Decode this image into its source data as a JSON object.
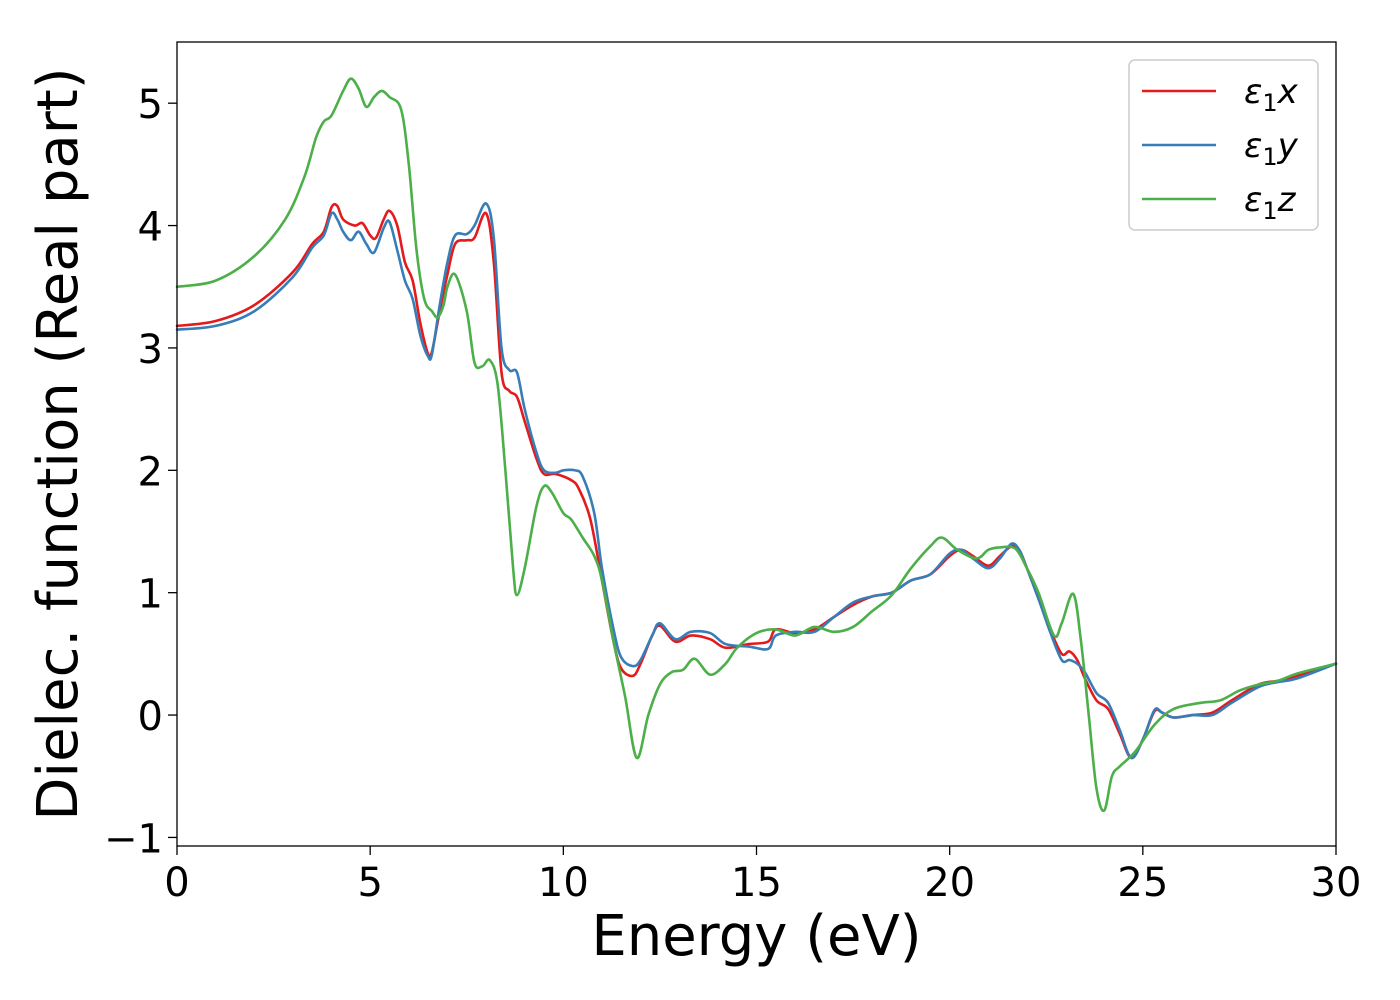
{
  "chart_data": {
    "type": "line",
    "title": "",
    "xlabel": "Energy (eV)",
    "ylabel": "Dielec. function (Real part)",
    "xlim": [
      0,
      30
    ],
    "ylim": [
      -1.07,
      5.5
    ],
    "xticks": [
      0,
      5,
      10,
      15,
      20,
      25,
      30
    ],
    "xtick_labels": [
      "0",
      "5",
      "10",
      "15",
      "20",
      "25",
      "30"
    ],
    "yticks": [
      -1,
      0,
      1,
      2,
      3,
      4,
      5
    ],
    "ytick_labels": [
      "−1",
      "0",
      "1",
      "2",
      "3",
      "4",
      "5"
    ],
    "grid": false,
    "legend_position": "top-right",
    "series": [
      {
        "name": "ε1x",
        "legend_base": "ε",
        "legend_sub": "1",
        "legend_var": "x",
        "color": "#e41a1c",
        "points": [
          [
            0,
            3.18
          ],
          [
            1,
            3.22
          ],
          [
            2,
            3.35
          ],
          [
            3,
            3.62
          ],
          [
            3.5,
            3.85
          ],
          [
            3.8,
            3.95
          ],
          [
            4.0,
            4.15
          ],
          [
            4.15,
            4.16
          ],
          [
            4.3,
            4.05
          ],
          [
            4.6,
            4.0
          ],
          [
            4.8,
            4.02
          ],
          [
            5.0,
            3.92
          ],
          [
            5.15,
            3.9
          ],
          [
            5.35,
            4.05
          ],
          [
            5.5,
            4.12
          ],
          [
            5.7,
            4.0
          ],
          [
            5.9,
            3.7
          ],
          [
            6.1,
            3.55
          ],
          [
            6.3,
            3.2
          ],
          [
            6.5,
            2.95
          ],
          [
            6.6,
            2.97
          ],
          [
            6.8,
            3.3
          ],
          [
            7.0,
            3.6
          ],
          [
            7.2,
            3.85
          ],
          [
            7.5,
            3.88
          ],
          [
            7.7,
            3.9
          ],
          [
            8.0,
            4.1
          ],
          [
            8.2,
            3.7
          ],
          [
            8.4,
            2.8
          ],
          [
            8.6,
            2.65
          ],
          [
            8.8,
            2.6
          ],
          [
            9.0,
            2.4
          ],
          [
            9.3,
            2.1
          ],
          [
            9.5,
            1.97
          ],
          [
            9.8,
            1.97
          ],
          [
            10.2,
            1.92
          ],
          [
            10.4,
            1.85
          ],
          [
            10.7,
            1.6
          ],
          [
            11.0,
            1.1
          ],
          [
            11.3,
            0.6
          ],
          [
            11.5,
            0.38
          ],
          [
            11.8,
            0.32
          ],
          [
            12.0,
            0.42
          ],
          [
            12.3,
            0.65
          ],
          [
            12.5,
            0.73
          ],
          [
            12.9,
            0.6
          ],
          [
            13.3,
            0.65
          ],
          [
            13.8,
            0.62
          ],
          [
            14.2,
            0.55
          ],
          [
            14.8,
            0.58
          ],
          [
            15.3,
            0.6
          ],
          [
            15.5,
            0.7
          ],
          [
            16.0,
            0.67
          ],
          [
            16.5,
            0.7
          ],
          [
            17.0,
            0.8
          ],
          [
            17.5,
            0.9
          ],
          [
            18.0,
            0.97
          ],
          [
            18.5,
            1.0
          ],
          [
            19.0,
            1.1
          ],
          [
            19.5,
            1.15
          ],
          [
            20.0,
            1.3
          ],
          [
            20.3,
            1.35
          ],
          [
            20.6,
            1.3
          ],
          [
            21.0,
            1.22
          ],
          [
            21.3,
            1.3
          ],
          [
            21.6,
            1.38
          ],
          [
            21.8,
            1.35
          ],
          [
            22.0,
            1.2
          ],
          [
            22.3,
            0.95
          ],
          [
            22.6,
            0.7
          ],
          [
            22.9,
            0.5
          ],
          [
            23.1,
            0.52
          ],
          [
            23.3,
            0.45
          ],
          [
            23.5,
            0.3
          ],
          [
            23.8,
            0.12
          ],
          [
            24.1,
            0.05
          ],
          [
            24.4,
            -0.15
          ],
          [
            24.7,
            -0.35
          ],
          [
            25.0,
            -0.2
          ],
          [
            25.3,
            0.03
          ],
          [
            25.5,
            0.02
          ],
          [
            25.8,
            -0.02
          ],
          [
            26.3,
            0.0
          ],
          [
            26.8,
            0.02
          ],
          [
            27.3,
            0.12
          ],
          [
            28.0,
            0.25
          ],
          [
            28.5,
            0.28
          ],
          [
            29.0,
            0.32
          ],
          [
            30.0,
            0.42
          ]
        ]
      },
      {
        "name": "ε1y",
        "legend_base": "ε",
        "legend_sub": "1",
        "legend_var": "y",
        "color": "#377eb8",
        "points": [
          [
            0,
            3.15
          ],
          [
            1,
            3.18
          ],
          [
            2,
            3.3
          ],
          [
            3,
            3.58
          ],
          [
            3.5,
            3.82
          ],
          [
            3.8,
            3.92
          ],
          [
            4.0,
            4.1
          ],
          [
            4.15,
            4.05
          ],
          [
            4.3,
            3.95
          ],
          [
            4.5,
            3.88
          ],
          [
            4.7,
            3.95
          ],
          [
            4.9,
            3.85
          ],
          [
            5.1,
            3.78
          ],
          [
            5.35,
            3.98
          ],
          [
            5.5,
            4.03
          ],
          [
            5.7,
            3.8
          ],
          [
            5.9,
            3.55
          ],
          [
            6.1,
            3.4
          ],
          [
            6.3,
            3.1
          ],
          [
            6.5,
            2.93
          ],
          [
            6.6,
            2.95
          ],
          [
            6.8,
            3.35
          ],
          [
            7.0,
            3.7
          ],
          [
            7.2,
            3.92
          ],
          [
            7.5,
            3.93
          ],
          [
            7.7,
            4.0
          ],
          [
            8.0,
            4.18
          ],
          [
            8.2,
            3.9
          ],
          [
            8.4,
            3.0
          ],
          [
            8.6,
            2.82
          ],
          [
            8.8,
            2.8
          ],
          [
            9.0,
            2.5
          ],
          [
            9.3,
            2.15
          ],
          [
            9.5,
            2.0
          ],
          [
            9.8,
            1.98
          ],
          [
            10.0,
            2.0
          ],
          [
            10.3,
            2.0
          ],
          [
            10.5,
            1.95
          ],
          [
            10.8,
            1.65
          ],
          [
            11.0,
            1.2
          ],
          [
            11.3,
            0.7
          ],
          [
            11.5,
            0.47
          ],
          [
            11.8,
            0.4
          ],
          [
            12.0,
            0.45
          ],
          [
            12.3,
            0.65
          ],
          [
            12.5,
            0.75
          ],
          [
            12.9,
            0.62
          ],
          [
            13.3,
            0.68
          ],
          [
            13.8,
            0.67
          ],
          [
            14.2,
            0.58
          ],
          [
            14.8,
            0.56
          ],
          [
            15.3,
            0.54
          ],
          [
            15.5,
            0.65
          ],
          [
            16.0,
            0.68
          ],
          [
            16.5,
            0.68
          ],
          [
            17.0,
            0.8
          ],
          [
            17.5,
            0.92
          ],
          [
            18.0,
            0.97
          ],
          [
            18.5,
            1.0
          ],
          [
            19.0,
            1.1
          ],
          [
            19.5,
            1.15
          ],
          [
            20.0,
            1.32
          ],
          [
            20.3,
            1.35
          ],
          [
            20.6,
            1.28
          ],
          [
            21.0,
            1.2
          ],
          [
            21.3,
            1.28
          ],
          [
            21.6,
            1.4
          ],
          [
            21.8,
            1.35
          ],
          [
            22.0,
            1.2
          ],
          [
            22.3,
            0.95
          ],
          [
            22.6,
            0.68
          ],
          [
            22.9,
            0.45
          ],
          [
            23.1,
            0.45
          ],
          [
            23.3,
            0.42
          ],
          [
            23.5,
            0.35
          ],
          [
            23.8,
            0.18
          ],
          [
            24.1,
            0.1
          ],
          [
            24.4,
            -0.12
          ],
          [
            24.7,
            -0.35
          ],
          [
            25.0,
            -0.2
          ],
          [
            25.3,
            0.04
          ],
          [
            25.5,
            0.02
          ],
          [
            25.8,
            -0.02
          ],
          [
            26.3,
            0.0
          ],
          [
            26.8,
            0.0
          ],
          [
            27.3,
            0.1
          ],
          [
            28.0,
            0.23
          ],
          [
            28.5,
            0.27
          ],
          [
            29.0,
            0.3
          ],
          [
            30.0,
            0.42
          ]
        ]
      },
      {
        "name": "ε1z",
        "legend_base": "ε",
        "legend_sub": "1",
        "legend_var": "z",
        "color": "#4daf4a",
        "points": [
          [
            0,
            3.5
          ],
          [
            1,
            3.55
          ],
          [
            2,
            3.75
          ],
          [
            2.8,
            4.05
          ],
          [
            3.3,
            4.4
          ],
          [
            3.6,
            4.72
          ],
          [
            3.8,
            4.85
          ],
          [
            4.0,
            4.9
          ],
          [
            4.3,
            5.1
          ],
          [
            4.5,
            5.2
          ],
          [
            4.7,
            5.12
          ],
          [
            4.9,
            4.97
          ],
          [
            5.1,
            5.05
          ],
          [
            5.3,
            5.1
          ],
          [
            5.5,
            5.05
          ],
          [
            5.8,
            4.95
          ],
          [
            6.0,
            4.5
          ],
          [
            6.2,
            3.8
          ],
          [
            6.4,
            3.4
          ],
          [
            6.6,
            3.3
          ],
          [
            6.75,
            3.25
          ],
          [
            6.9,
            3.35
          ],
          [
            7.0,
            3.5
          ],
          [
            7.2,
            3.6
          ],
          [
            7.5,
            3.3
          ],
          [
            7.7,
            2.88
          ],
          [
            7.9,
            2.85
          ],
          [
            8.1,
            2.9
          ],
          [
            8.3,
            2.7
          ],
          [
            8.5,
            2.0
          ],
          [
            8.7,
            1.2
          ],
          [
            8.8,
            0.98
          ],
          [
            9.0,
            1.2
          ],
          [
            9.3,
            1.7
          ],
          [
            9.5,
            1.87
          ],
          [
            9.7,
            1.82
          ],
          [
            10.0,
            1.65
          ],
          [
            10.2,
            1.6
          ],
          [
            10.5,
            1.45
          ],
          [
            10.8,
            1.3
          ],
          [
            11.0,
            1.1
          ],
          [
            11.3,
            0.6
          ],
          [
            11.6,
            0.15
          ],
          [
            11.9,
            -0.35
          ],
          [
            12.2,
            0.0
          ],
          [
            12.5,
            0.25
          ],
          [
            12.8,
            0.35
          ],
          [
            13.1,
            0.37
          ],
          [
            13.4,
            0.46
          ],
          [
            13.8,
            0.33
          ],
          [
            14.2,
            0.42
          ],
          [
            14.5,
            0.55
          ],
          [
            15.0,
            0.67
          ],
          [
            15.5,
            0.7
          ],
          [
            16.0,
            0.65
          ],
          [
            16.5,
            0.72
          ],
          [
            17.0,
            0.68
          ],
          [
            17.5,
            0.72
          ],
          [
            18.0,
            0.85
          ],
          [
            18.5,
            0.98
          ],
          [
            19.0,
            1.2
          ],
          [
            19.5,
            1.38
          ],
          [
            19.8,
            1.45
          ],
          [
            20.2,
            1.35
          ],
          [
            20.7,
            1.28
          ],
          [
            21.0,
            1.35
          ],
          [
            21.3,
            1.37
          ],
          [
            21.7,
            1.36
          ],
          [
            22.0,
            1.2
          ],
          [
            22.3,
            1.0
          ],
          [
            22.7,
            0.65
          ],
          [
            22.9,
            0.75
          ],
          [
            23.2,
            0.99
          ],
          [
            23.4,
            0.6
          ],
          [
            23.6,
            0.0
          ],
          [
            23.8,
            -0.6
          ],
          [
            24.0,
            -0.78
          ],
          [
            24.2,
            -0.5
          ],
          [
            24.4,
            -0.42
          ],
          [
            24.8,
            -0.3
          ],
          [
            25.3,
            -0.08
          ],
          [
            25.8,
            0.05
          ],
          [
            26.5,
            0.1
          ],
          [
            27.0,
            0.12
          ],
          [
            27.5,
            0.2
          ],
          [
            28.0,
            0.25
          ],
          [
            28.5,
            0.28
          ],
          [
            29.0,
            0.34
          ],
          [
            30.0,
            0.42
          ]
        ]
      }
    ]
  }
}
